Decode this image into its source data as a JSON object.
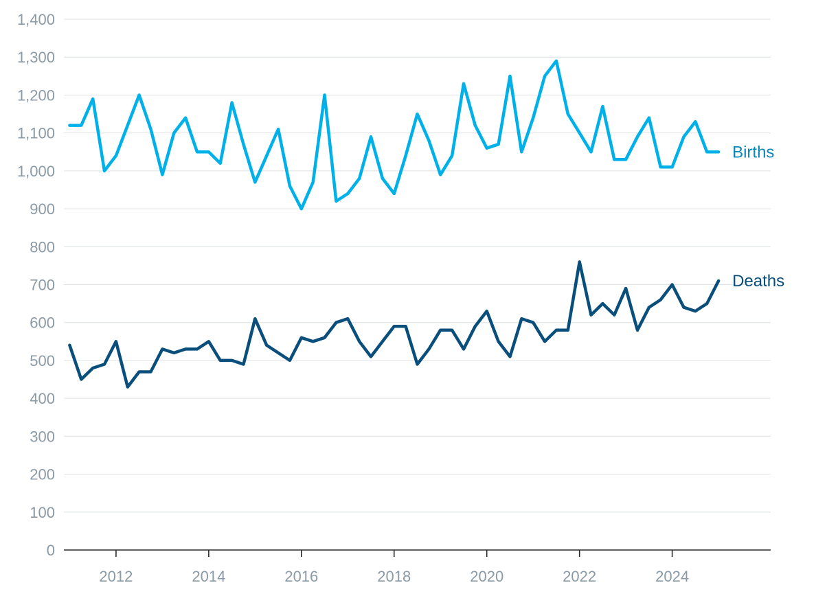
{
  "chart_data": {
    "type": "line",
    "title": "",
    "xlabel": "",
    "ylabel": "",
    "ylim": [
      0,
      1400
    ],
    "y_ticks": [
      0,
      100,
      200,
      300,
      400,
      500,
      600,
      700,
      800,
      900,
      1000,
      1100,
      1200,
      1300,
      1400
    ],
    "y_tick_labels": [
      "0",
      "100",
      "200",
      "300",
      "400",
      "500",
      "600",
      "700",
      "800",
      "900",
      "1,000",
      "1,100",
      "1,200",
      "1,300",
      "1,400"
    ],
    "xlim": [
      2010.875,
      2026.125
    ],
    "x_ticks": [
      2012,
      2014,
      2016,
      2018,
      2020,
      2022,
      2024
    ],
    "x_tick_labels": [
      "2012",
      "2014",
      "2016",
      "2018",
      "2020",
      "2022",
      "2024"
    ],
    "grid": "horizontal",
    "legend": "direct labels at right end of lines",
    "x_period": "quarterly, 2011 Q1 to 2025 Q1",
    "x": [
      2011,
      2011.25,
      2011.5,
      2011.75,
      2012,
      2012.25,
      2012.5,
      2012.75,
      2013,
      2013.25,
      2013.5,
      2013.75,
      2014,
      2014.25,
      2014.5,
      2014.75,
      2015,
      2015.25,
      2015.5,
      2015.75,
      2016,
      2016.25,
      2016.5,
      2016.75,
      2017,
      2017.25,
      2017.5,
      2017.75,
      2018,
      2018.25,
      2018.5,
      2018.75,
      2019,
      2019.25,
      2019.5,
      2019.75,
      2020,
      2020.25,
      2020.5,
      2020.75,
      2021,
      2021.25,
      2021.5,
      2021.75,
      2022,
      2022.25,
      2022.5,
      2022.75,
      2023,
      2023.25,
      2023.5,
      2023.75,
      2024,
      2024.25,
      2024.5,
      2024.75,
      2025
    ],
    "series": [
      {
        "name": "Births",
        "color": "#00b0e8",
        "label_color": "#0a86b8",
        "values": [
          1120,
          1120,
          1190,
          1000,
          1040,
          1120,
          1200,
          1110,
          990,
          1100,
          1140,
          1050,
          1050,
          1020,
          1180,
          1070,
          970,
          1040,
          1110,
          960,
          900,
          970,
          1200,
          920,
          940,
          980,
          1090,
          980,
          940,
          1040,
          1150,
          1080,
          990,
          1040,
          1230,
          1120,
          1060,
          1070,
          1250,
          1050,
          1140,
          1250,
          1290,
          1150,
          1100,
          1050,
          1170,
          1030,
          1030,
          1090,
          1140,
          1010,
          1010,
          1090,
          1130,
          1050,
          1050
        ]
      },
      {
        "name": "Deaths",
        "color": "#0a4f7c",
        "label_color": "#0a4f7c",
        "values": [
          540,
          450,
          480,
          490,
          550,
          430,
          470,
          470,
          530,
          520,
          530,
          530,
          550,
          500,
          500,
          490,
          610,
          540,
          520,
          500,
          560,
          550,
          560,
          600,
          610,
          550,
          510,
          550,
          590,
          590,
          490,
          530,
          580,
          580,
          530,
          590,
          630,
          550,
          510,
          610,
          600,
          550,
          580,
          580,
          760,
          620,
          650,
          620,
          690,
          580,
          640,
          660,
          700,
          640,
          630,
          650,
          710
        ]
      }
    ]
  }
}
